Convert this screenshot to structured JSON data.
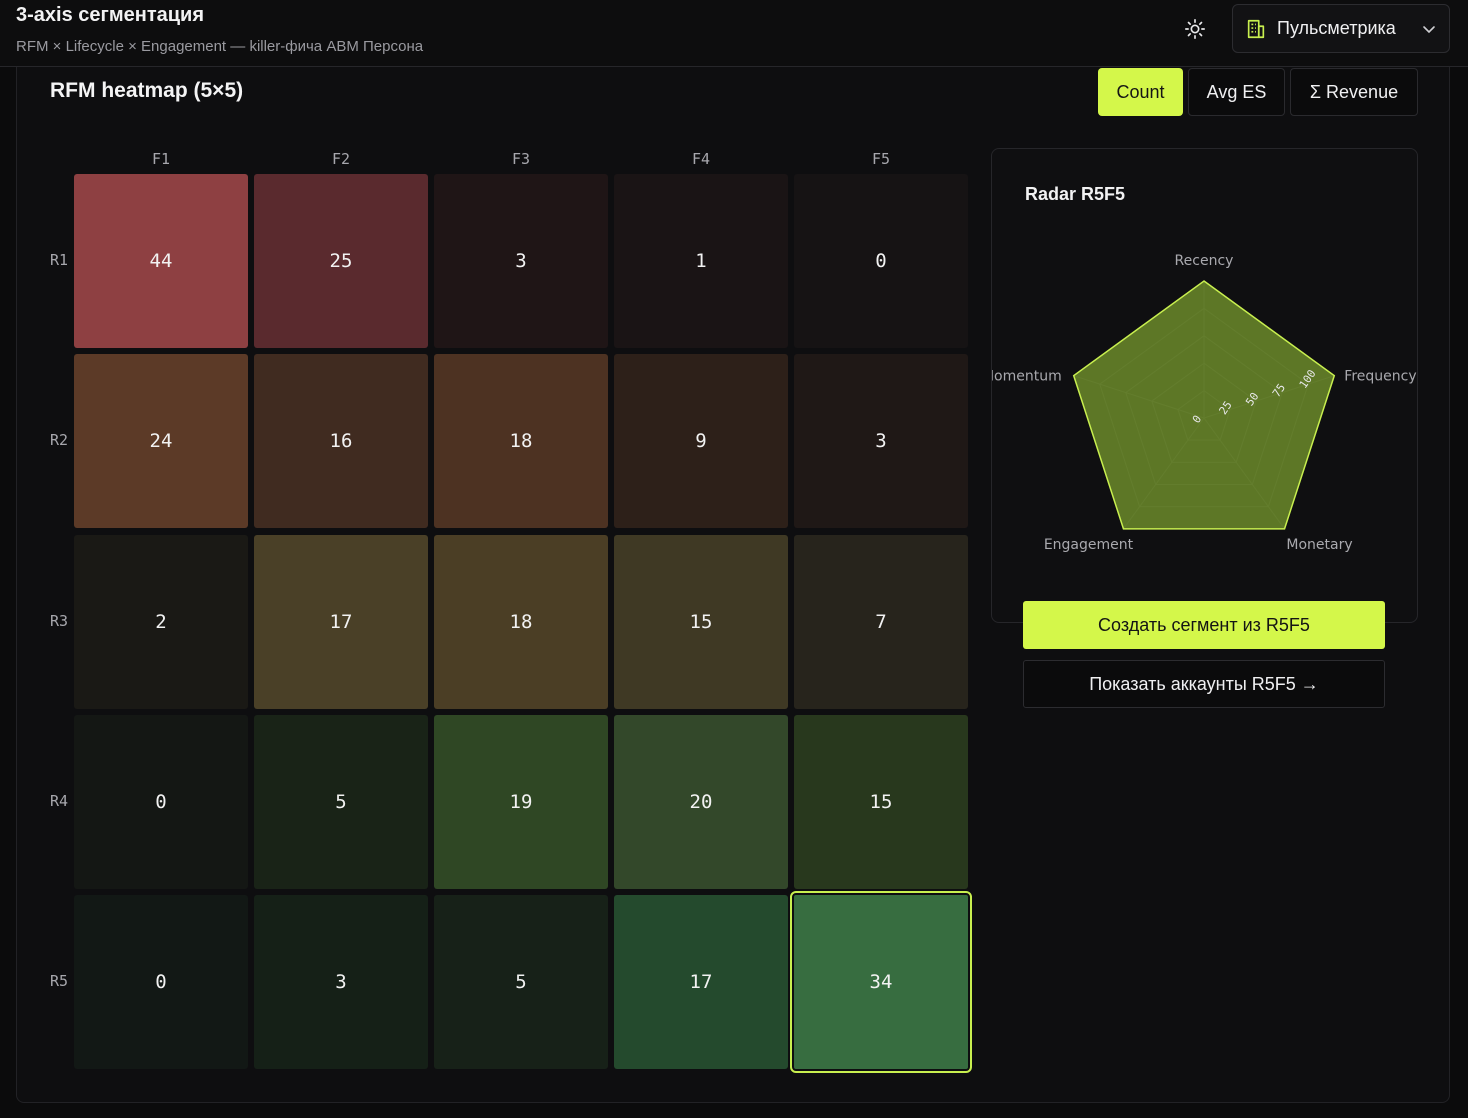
{
  "header": {
    "title": "3-axis сегментация",
    "subtitle": "RFM × Lifecycle × Engagement — killer-фича ABM Персона",
    "workspace": "Пульсметрика",
    "theme_icon": "sun-icon",
    "workspace_icon": "building-icon",
    "chevron_icon": "chevron-down-icon"
  },
  "panel": {
    "title": "RFM heatmap (5×5)",
    "metrics": [
      "Count",
      "Avg ES",
      "Σ Revenue"
    ],
    "active_metric": "Count"
  },
  "heatmap": {
    "columns": [
      "F1",
      "F2",
      "F3",
      "F4",
      "F5"
    ],
    "rows": [
      "R1",
      "R2",
      "R3",
      "R4",
      "R5"
    ],
    "values": [
      [
        44,
        25,
        3,
        1,
        0
      ],
      [
        24,
        16,
        18,
        9,
        3
      ],
      [
        2,
        17,
        18,
        15,
        7
      ],
      [
        0,
        5,
        19,
        20,
        15
      ],
      [
        0,
        3,
        5,
        17,
        34
      ]
    ],
    "colors": [
      [
        "#8e4042",
        "#5a2a2e",
        "#1f1516",
        "#1a1415",
        "#161314"
      ],
      [
        "#5c3a27",
        "#402b20",
        "#4d3222",
        "#2d2019",
        "#1f1816"
      ],
      [
        "#1a1915",
        "#4a4027",
        "#4b3e25",
        "#3f3924",
        "#27241c"
      ],
      [
        "#141714",
        "#192317",
        "#2f4724",
        "#33482a",
        "#28381d"
      ],
      [
        "#121815",
        "#152017",
        "#172118",
        "#244a2d",
        "#376d40"
      ]
    ],
    "selected": "R5F5"
  },
  "radar": {
    "title": "Radar R5F5",
    "axes": [
      "Recency",
      "Frequency",
      "Monetary",
      "Engagement",
      "Momentum"
    ],
    "values": [
      100,
      100,
      100,
      100,
      100
    ],
    "ticks": [
      "0",
      "25",
      "50",
      "75",
      "100"
    ],
    "fill": "#6b8a2a",
    "stroke": "#c8ef4f"
  },
  "actions": {
    "create": "Создать сегмент из R5F5",
    "show": "Показать аккаунты R5F5 →"
  }
}
